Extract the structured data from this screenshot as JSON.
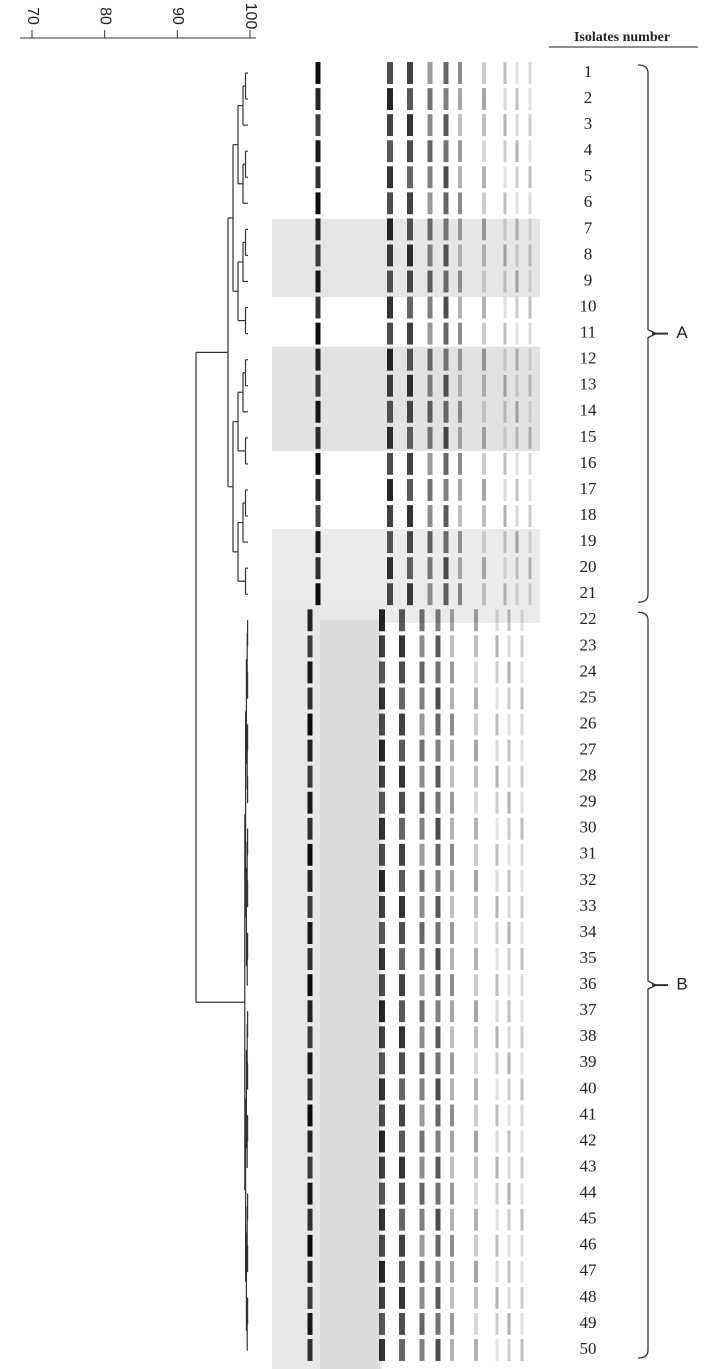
{
  "scale": {
    "lim": [
      70,
      100
    ],
    "ticks": [
      70,
      80,
      90,
      100
    ]
  },
  "header": "Isolates number",
  "isolates": [
    1,
    2,
    3,
    4,
    5,
    6,
    7,
    8,
    9,
    10,
    11,
    12,
    13,
    14,
    15,
    16,
    17,
    18,
    19,
    20,
    21,
    22,
    23,
    24,
    25,
    26,
    27,
    28,
    29,
    30,
    31,
    32,
    33,
    34,
    35,
    36,
    37,
    38,
    39,
    40,
    41,
    42,
    43,
    44,
    45,
    46,
    47,
    48,
    49,
    50
  ],
  "groups": [
    "A",
    "B"
  ]
}
